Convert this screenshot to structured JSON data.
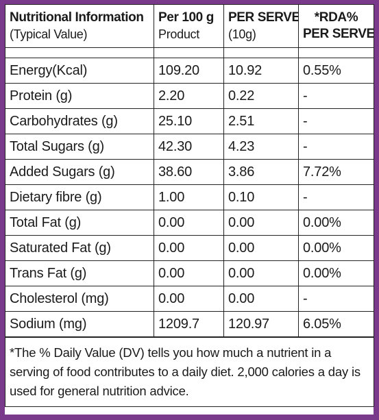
{
  "header": {
    "col1_title": "Nutritional Information",
    "col1_sub": "(Typical Value)",
    "col2_title": "Per 100 g",
    "col2_sub": "Product",
    "col3_title": "PER SERVE",
    "col3_sub": "(10g)",
    "col4_title": "*RDA%",
    "col4_sub": "PER SERVE"
  },
  "rows": [
    {
      "nutrient": "Energy(Kcal)",
      "per100": "109.20",
      "serve": "10.92",
      "rda": "0.55%"
    },
    {
      "nutrient": "Protein (g)",
      "per100": "2.20",
      "serve": "0.22",
      "rda": "-"
    },
    {
      "nutrient": "Carbohydrates (g)",
      "per100": "25.10",
      "serve": "2.51",
      "rda": "-"
    },
    {
      "nutrient": "Total  Sugars (g)",
      "per100": "42.30",
      "serve": "4.23",
      "rda": "-"
    },
    {
      "nutrient": "Added Sugars (g)",
      "per100": "38.60",
      "serve": "3.86",
      "rda": "7.72%"
    },
    {
      "nutrient": "Dietary fibre (g)",
      "per100": "1.00",
      "serve": "0.10",
      "rda": "-"
    },
    {
      "nutrient": "Total Fat (g)",
      "per100": "0.00",
      "serve": "0.00",
      "rda": "0.00%"
    },
    {
      "nutrient": "Saturated Fat (g)",
      "per100": "0.00",
      "serve": "0.00",
      "rda": "0.00%"
    },
    {
      "nutrient": "Trans Fat (g)",
      "per100": "0.00",
      "serve": "0.00",
      "rda": "0.00%"
    },
    {
      "nutrient": "Cholesterol (mg)",
      "per100": "0.00",
      "serve": "0.00",
      "rda": "-"
    },
    {
      "nutrient": "Sodium (mg)",
      "per100": "1209.7",
      "serve": "120.97",
      "rda": "6.05%"
    }
  ],
  "footnote": "*The % Daily Value (DV) tells you how much a nutrient in a serving of food contributes to a daily diet. 2,000 calories a day is used for general nutrition advice.",
  "colors": {
    "frame": "#7a3a8c",
    "border": "#222222",
    "text": "#1a1a1a"
  }
}
